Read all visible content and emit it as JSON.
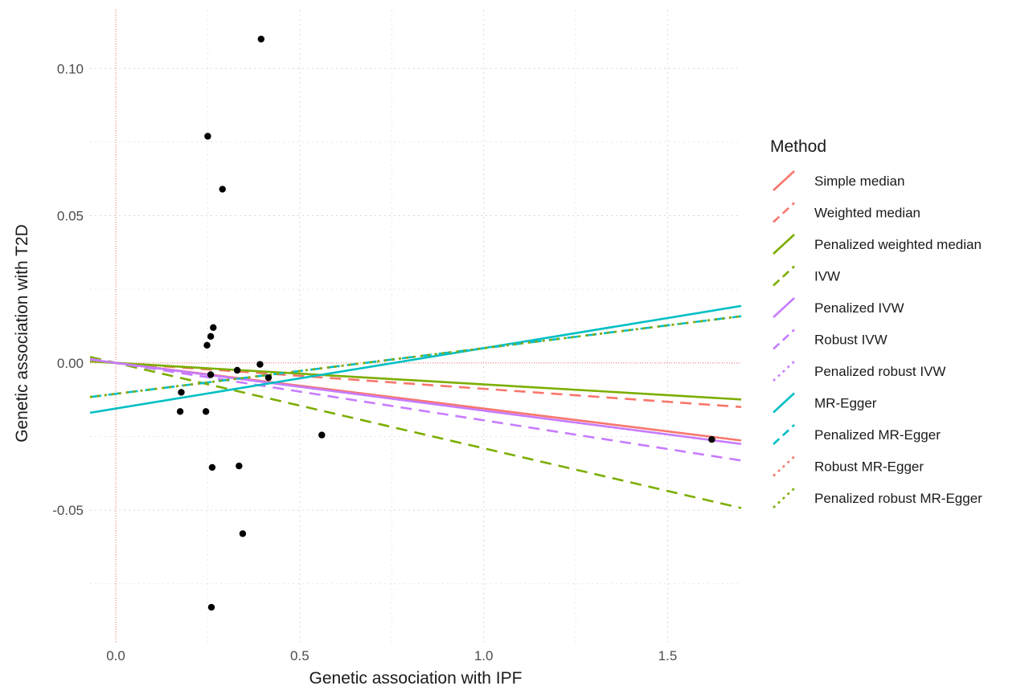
{
  "chart_data": {
    "type": "scatter",
    "xlabel": "Genetic association with IPF",
    "ylabel": "Genetic association with T2D",
    "xlim": [
      -0.07,
      1.7
    ],
    "ylim": [
      -0.095,
      0.12
    ],
    "x_ticks": [
      0.0,
      0.5,
      1.0,
      1.5
    ],
    "x_tick_labels": [
      "0.0",
      "0.5",
      "1.0",
      "1.5"
    ],
    "y_ticks": [
      -0.05,
      0.0,
      0.05,
      0.1
    ],
    "y_tick_labels": [
      "-0.05",
      "0.00",
      "0.05",
      "0.10"
    ],
    "grid": true,
    "legend_position": "right",
    "legend_title": "Method",
    "reference_lines": {
      "x": 0,
      "y": 0,
      "color": "#F8766D",
      "style": "dotted"
    },
    "points": [
      {
        "x": 0.395,
        "y": 0.11
      },
      {
        "x": 0.25,
        "y": 0.077
      },
      {
        "x": 0.29,
        "y": 0.059
      },
      {
        "x": 0.265,
        "y": 0.012
      },
      {
        "x": 0.258,
        "y": 0.009
      },
      {
        "x": 0.248,
        "y": 0.006
      },
      {
        "x": 0.392,
        "y": -0.0005
      },
      {
        "x": 0.258,
        "y": -0.004
      },
      {
        "x": 0.33,
        "y": -0.0025
      },
      {
        "x": 0.415,
        "y": -0.005
      },
      {
        "x": 0.178,
        "y": -0.01
      },
      {
        "x": 0.175,
        "y": -0.0165
      },
      {
        "x": 0.245,
        "y": -0.0165
      },
      {
        "x": 0.56,
        "y": -0.0245
      },
      {
        "x": 0.262,
        "y": -0.0355
      },
      {
        "x": 0.335,
        "y": -0.035
      },
      {
        "x": 0.345,
        "y": -0.058
      },
      {
        "x": 0.26,
        "y": -0.083
      },
      {
        "x": 1.62,
        "y": -0.026
      }
    ],
    "series": [
      {
        "name": "Simple median",
        "color": "#F8766D",
        "linetype": "solid",
        "intercept": 0.0,
        "slope": -0.0155
      },
      {
        "name": "Weighted median",
        "color": "#F8766D",
        "linetype": "dashed",
        "intercept": 0.0,
        "slope": -0.0088
      },
      {
        "name": "Penalized weighted median",
        "color": "#7CAE00",
        "linetype": "solid",
        "intercept": 0.0,
        "slope": -0.0073
      },
      {
        "name": "IVW",
        "color": "#7CAE00",
        "linetype": "dashed",
        "intercept": 0.0,
        "slope": -0.029
      },
      {
        "name": "Penalized IVW",
        "color": "#C77CFF",
        "linetype": "solid",
        "intercept": 0.0,
        "slope": -0.0162
      },
      {
        "name": "Robust IVW",
        "color": "#C77CFF",
        "linetype": "dashed",
        "intercept": 0.0,
        "slope": -0.0195
      },
      {
        "name": "Penalized robust IVW",
        "color": "#C77CFF",
        "linetype": "dotted",
        "intercept": 0.0,
        "slope": -0.0162
      },
      {
        "name": "MR-Egger",
        "color": "#00BFC4",
        "linetype": "solid",
        "intercept": -0.0155,
        "slope": 0.0205
      },
      {
        "name": "Penalized MR-Egger",
        "color": "#00BFC4",
        "linetype": "dashed",
        "intercept": -0.0105,
        "slope": 0.0155
      },
      {
        "name": "Robust MR-Egger",
        "color": "#F8766D",
        "linetype": "dotted",
        "intercept": -0.0105,
        "slope": 0.0155
      },
      {
        "name": "Penalized robust MR-Egger",
        "color": "#7CAE00",
        "linetype": "dotted",
        "intercept": -0.0105,
        "slope": 0.0155
      }
    ]
  }
}
